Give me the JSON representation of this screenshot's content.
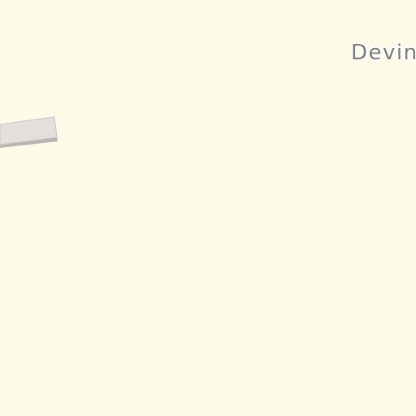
{
  "map": {
    "background_color": "#fdfbe8",
    "building_fill": "#e2dfdd",
    "building_side": "#b9b5b3",
    "building_stroke": "#c9c6c4",
    "label_color": "#7a7a7a",
    "place_label": "Devin"
  }
}
